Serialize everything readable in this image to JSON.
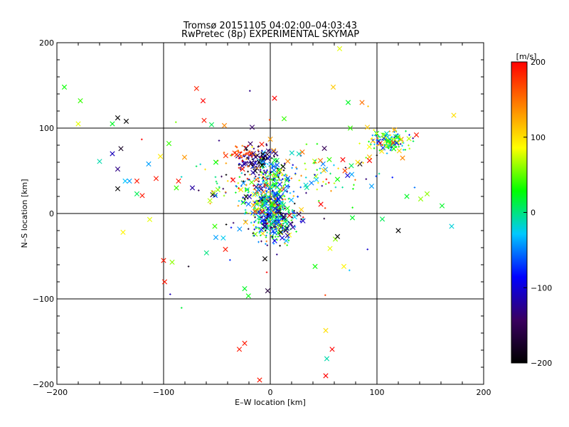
{
  "chart_data": {
    "type": "scatter",
    "title": "Tromsø 20151105 04:02:00–04:03:43",
    "subtitle": "RwPretec (8p) EXPERIMENTAL SKYMAP",
    "xlabel": "E–W location [km]",
    "ylabel": "N–S location [km]",
    "xlim": [
      -200,
      200
    ],
    "ylim": [
      -200,
      200
    ],
    "x_ticks": [
      "−200",
      "−100",
      "0",
      "100",
      "200"
    ],
    "y_ticks": [
      "−200",
      "−100",
      "0",
      "100",
      "200"
    ],
    "grid": "lines at −100, 0, 100",
    "colorbar": {
      "label": "[m/s]",
      "range": [
        -200,
        200
      ],
      "ticks": [
        "−200",
        "−100",
        "0",
        "100",
        "200"
      ],
      "colormap": [
        "#000000",
        "#3a0060",
        "#0000ff",
        "#00c8ff",
        "#00ff00",
        "#ffff00",
        "#ff8000",
        "#ff0000"
      ]
    },
    "markers": {
      "large": "x",
      "small": "+"
    },
    "clusters": [
      {
        "x": 0,
        "y": 15,
        "sx": 9,
        "sy": 22,
        "n": 460,
        "v": 0,
        "vs": 80
      },
      {
        "x": 3,
        "y": -12,
        "sx": 12,
        "sy": 10,
        "n": 160,
        "v": -60,
        "vs": 90
      },
      {
        "x": -12,
        "y": 62,
        "sx": 8,
        "sy": 8,
        "n": 110,
        "v": -150,
        "vs": 55
      },
      {
        "x": -25,
        "y": 70,
        "sx": 7,
        "sy": 5,
        "n": 40,
        "v": 175,
        "vs": 30
      },
      {
        "x": 110,
        "y": 85,
        "sx": 9,
        "sy": 7,
        "n": 140,
        "v": 30,
        "vs": 70
      },
      {
        "x": 35,
        "y": 45,
        "sx": 25,
        "sy": 12,
        "n": 80,
        "v": 20,
        "vs": 110
      },
      {
        "x": -30,
        "y": 25,
        "sx": 18,
        "sy": 12,
        "n": 60,
        "v": 40,
        "vs": 110
      },
      {
        "x": 0,
        "y": 20,
        "sx": 60,
        "sy": 70,
        "n": 70,
        "v": 0,
        "vs": 140
      }
    ],
    "points": [
      {
        "x": -143,
        "y": 112,
        "v": -200
      },
      {
        "x": -140,
        "y": 76,
        "v": -180
      },
      {
        "x": -143,
        "y": 52,
        "v": -130
      },
      {
        "x": -148,
        "y": 70,
        "v": -110
      },
      {
        "x": -160,
        "y": 61,
        "v": -10
      },
      {
        "x": -143,
        "y": 29,
        "v": -200
      },
      {
        "x": -136,
        "y": 38,
        "v": -30
      },
      {
        "x": -132,
        "y": 38,
        "v": -40
      },
      {
        "x": -125,
        "y": 23,
        "v": 10
      },
      {
        "x": -114,
        "y": 58,
        "v": -40
      },
      {
        "x": -107,
        "y": 41,
        "v": 190
      },
      {
        "x": -113,
        "y": -7,
        "v": 80
      },
      {
        "x": -125,
        "y": 38,
        "v": 190
      },
      {
        "x": -86,
        "y": 38,
        "v": 190
      },
      {
        "x": -73,
        "y": 30,
        "v": -120
      },
      {
        "x": -88,
        "y": 30,
        "v": 40
      },
      {
        "x": -63,
        "y": 132,
        "v": 200
      },
      {
        "x": -100,
        "y": -55,
        "v": 190
      },
      {
        "x": -42,
        "y": -42,
        "v": 190
      },
      {
        "x": -52,
        "y": -15,
        "v": 40
      },
      {
        "x": -43,
        "y": 103,
        "v": 140
      },
      {
        "x": -17,
        "y": 101,
        "v": -140
      },
      {
        "x": -29,
        "y": -159,
        "v": 190
      },
      {
        "x": 58,
        "y": -159,
        "v": 200
      },
      {
        "x": 52,
        "y": -190,
        "v": 200
      },
      {
        "x": 53,
        "y": -170,
        "v": -10
      },
      {
        "x": 4,
        "y": 135,
        "v": 200
      },
      {
        "x": 13,
        "y": 111,
        "v": 40
      },
      {
        "x": 12,
        "y": 55,
        "v": -200
      },
      {
        "x": 30,
        "y": 72,
        "v": 150
      },
      {
        "x": 47,
        "y": 62,
        "v": 150
      },
      {
        "x": 56,
        "y": -41,
        "v": 80
      },
      {
        "x": 61,
        "y": -30,
        "v": 60
      },
      {
        "x": 68,
        "y": 63,
        "v": 200
      },
      {
        "x": 70,
        "y": 50,
        "v": 170
      },
      {
        "x": 63,
        "y": 40,
        "v": 30
      },
      {
        "x": 76,
        "y": 56,
        "v": 10
      },
      {
        "x": 84,
        "y": 58,
        "v": -190
      },
      {
        "x": 77,
        "y": -5,
        "v": 20
      },
      {
        "x": 95,
        "y": 32,
        "v": -40
      },
      {
        "x": 91,
        "y": 101,
        "v": 110
      },
      {
        "x": 93,
        "y": 62,
        "v": 200
      },
      {
        "x": 128,
        "y": 20,
        "v": 20
      },
      {
        "x": 141,
        "y": 17,
        "v": 60
      },
      {
        "x": 161,
        "y": 9,
        "v": 20
      },
      {
        "x": 170,
        "y": -15,
        "v": -20
      },
      {
        "x": 42,
        "y": -62,
        "v": 30
      },
      {
        "x": 63,
        "y": -27,
        "v": -200
      },
      {
        "x": -26,
        "y": 52,
        "v": 190
      },
      {
        "x": -8,
        "y": 81,
        "v": 190
      },
      {
        "x": 0,
        "y": 87,
        "v": 130
      },
      {
        "x": -18,
        "y": 70,
        "v": 175
      },
      {
        "x": -193,
        "y": 148,
        "v": 30
      },
      {
        "x": -178,
        "y": 132,
        "v": 40
      },
      {
        "x": -180,
        "y": 105,
        "v": 80
      },
      {
        "x": -135,
        "y": 108,
        "v": -200
      },
      {
        "x": -148,
        "y": 105,
        "v": 20
      },
      {
        "x": -120,
        "y": 21,
        "v": 190
      },
      {
        "x": -138,
        "y": -22,
        "v": 90
      },
      {
        "x": -99,
        "y": -80,
        "v": 190
      },
      {
        "x": -92,
        "y": -57,
        "v": 60
      },
      {
        "x": -95,
        "y": 82,
        "v": 40
      },
      {
        "x": -62,
        "y": 109,
        "v": 190
      },
      {
        "x": -55,
        "y": 104,
        "v": 10
      },
      {
        "x": -51,
        "y": 60,
        "v": 30
      },
      {
        "x": -51,
        "y": -28,
        "v": -40
      },
      {
        "x": -24,
        "y": -152,
        "v": 190
      },
      {
        "x": -10,
        "y": -195,
        "v": 190
      },
      {
        "x": -5,
        "y": -53,
        "v": -200
      },
      {
        "x": -24,
        "y": -88,
        "v": 20
      },
      {
        "x": 52,
        "y": -137,
        "v": 100
      },
      {
        "x": 69,
        "y": -62,
        "v": 90
      },
      {
        "x": 59,
        "y": 148,
        "v": 110
      },
      {
        "x": 65,
        "y": 193,
        "v": 80
      },
      {
        "x": 73,
        "y": 130,
        "v": 20
      },
      {
        "x": 75,
        "y": 100,
        "v": 40
      },
      {
        "x": 120,
        "y": -20,
        "v": -200
      },
      {
        "x": 147,
        "y": 23,
        "v": 60
      },
      {
        "x": 172,
        "y": 115,
        "v": 100
      },
      {
        "x": 124,
        "y": 65,
        "v": 140
      },
      {
        "x": 137,
        "y": 92,
        "v": 190
      },
      {
        "x": 82,
        "y": 60,
        "v": 100
      },
      {
        "x": 86,
        "y": 130,
        "v": 150
      }
    ]
  }
}
